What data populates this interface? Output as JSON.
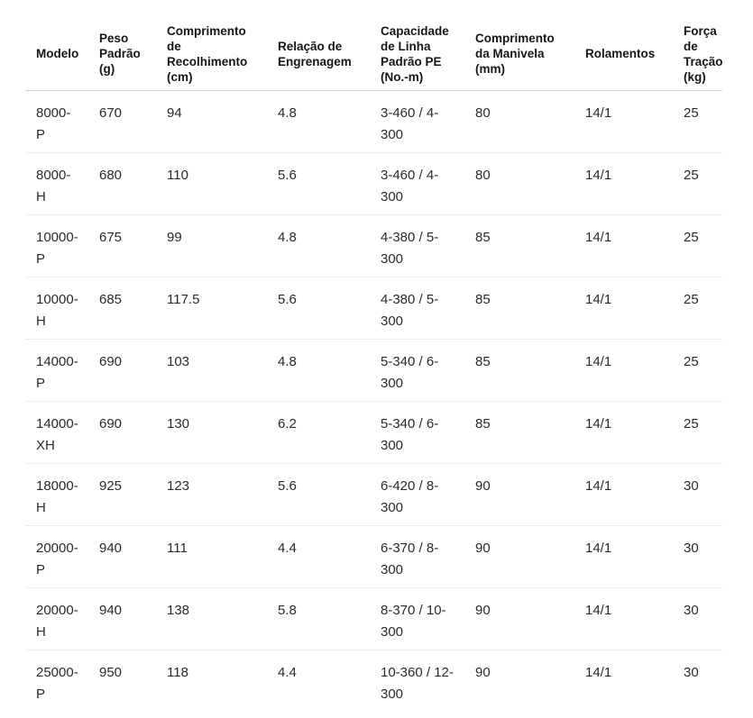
{
  "table": {
    "header_border_color": "#d6d6d6",
    "row_border_color": "#ededed",
    "columns": [
      "Modelo",
      "Peso Padrão (g)",
      "Comprimento de Recolhimento (cm)",
      "Relação de Engrenagem",
      "Capacidade de Linha Padrão PE (No.-m)",
      "Comprimento da Manivela (mm)",
      "Rolamentos",
      "Força de Tração (kg)"
    ],
    "rows": [
      [
        "8000-P",
        "670",
        "94",
        "4.8",
        "3-460 / 4-300",
        "80",
        "14/1",
        "25"
      ],
      [
        "8000-H",
        "680",
        "110",
        "5.6",
        "3-460 / 4-300",
        "80",
        "14/1",
        "25"
      ],
      [
        "10000-P",
        "675",
        "99",
        "4.8",
        "4-380 / 5-300",
        "85",
        "14/1",
        "25"
      ],
      [
        "10000-H",
        "685",
        "117.5",
        "5.6",
        "4-380 / 5-300",
        "85",
        "14/1",
        "25"
      ],
      [
        "14000-P",
        "690",
        "103",
        "4.8",
        "5-340 / 6-300",
        "85",
        "14/1",
        "25"
      ],
      [
        "14000-XH",
        "690",
        "130",
        "6.2",
        "5-340 / 6-300",
        "85",
        "14/1",
        "25"
      ],
      [
        "18000-H",
        "925",
        "123",
        "5.6",
        "6-420 / 8-300",
        "90",
        "14/1",
        "30"
      ],
      [
        "20000-P",
        "940",
        "111",
        "4.4",
        "6-370 / 8-300",
        "90",
        "14/1",
        "30"
      ],
      [
        "20000-H",
        "940",
        "138",
        "5.8",
        "8-370 / 10-300",
        "90",
        "14/1",
        "30"
      ],
      [
        "25000-P",
        "950",
        "118",
        "4.4",
        "10-360 / 12-300",
        "90",
        "14/1",
        "30"
      ]
    ]
  }
}
